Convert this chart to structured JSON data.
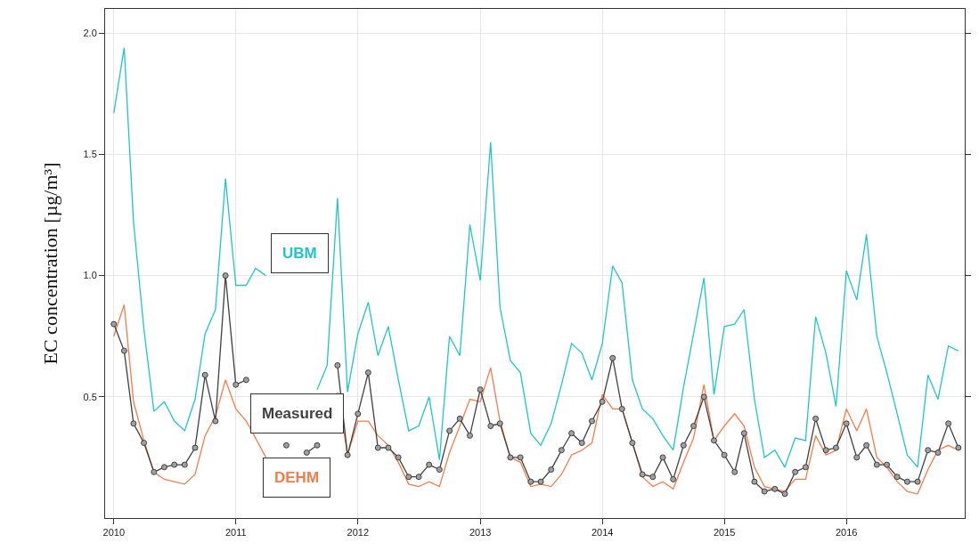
{
  "chart_data": {
    "type": "line",
    "ylabel": "EC concentration [µg/m³]",
    "x": [
      "2010-01",
      "2010-02",
      "2010-03",
      "2010-04",
      "2010-05",
      "2010-06",
      "2010-07",
      "2010-08",
      "2010-09",
      "2010-10",
      "2010-11",
      "2010-12",
      "2011-01",
      "2011-02",
      "2011-03",
      "2011-04",
      "2011-05",
      "2011-06",
      "2011-07",
      "2011-08",
      "2011-09",
      "2011-10",
      "2011-11",
      "2011-12",
      "2012-01",
      "2012-02",
      "2012-03",
      "2012-04",
      "2012-05",
      "2012-06",
      "2012-07",
      "2012-08",
      "2012-09",
      "2012-10",
      "2012-11",
      "2012-12",
      "2013-01",
      "2013-02",
      "2013-03",
      "2013-04",
      "2013-05",
      "2013-06",
      "2013-07",
      "2013-08",
      "2013-09",
      "2013-10",
      "2013-11",
      "2013-12",
      "2014-01",
      "2014-02",
      "2014-03",
      "2014-04",
      "2014-05",
      "2014-06",
      "2014-07",
      "2014-08",
      "2014-09",
      "2014-10",
      "2014-11",
      "2014-12",
      "2015-01",
      "2015-02",
      "2015-03",
      "2015-04",
      "2015-05",
      "2015-06",
      "2015-07",
      "2015-08",
      "2015-09",
      "2015-10",
      "2015-11",
      "2015-12",
      "2016-01",
      "2016-02",
      "2016-03",
      "2016-04",
      "2016-05",
      "2016-06",
      "2016-07",
      "2016-08",
      "2016-09",
      "2016-10",
      "2016-11",
      "2016-12"
    ],
    "series": [
      {
        "name": "UBM",
        "color": "#20c5c8",
        "marker": "none",
        "values": [
          1.67,
          1.94,
          1.22,
          0.78,
          0.44,
          0.48,
          0.4,
          0.36,
          0.49,
          0.76,
          0.86,
          1.4,
          0.96,
          0.96,
          1.03,
          1.0,
          null,
          null,
          null,
          null,
          0.53,
          0.63,
          1.32,
          0.52,
          0.76,
          0.89,
          0.67,
          0.79,
          0.57,
          0.36,
          0.38,
          0.5,
          0.24,
          0.75,
          0.67,
          1.21,
          0.98,
          1.55,
          0.87,
          0.65,
          0.6,
          0.35,
          0.3,
          0.39,
          0.55,
          0.72,
          0.68,
          0.57,
          0.72,
          1.04,
          0.97,
          0.57,
          0.45,
          0.41,
          0.34,
          0.28,
          0.54,
          0.76,
          0.99,
          0.51,
          0.79,
          0.8,
          0.86,
          0.49,
          0.25,
          0.28,
          0.21,
          0.33,
          0.32,
          0.83,
          0.68,
          0.46,
          1.02,
          0.9,
          1.17,
          0.75,
          0.6,
          0.43,
          0.26,
          0.21,
          0.59,
          0.49,
          0.71,
          0.69
        ]
      },
      {
        "name": "DEHM",
        "color": "#f47c48",
        "marker": "none",
        "values": [
          0.75,
          0.88,
          0.48,
          0.32,
          0.19,
          0.16,
          0.15,
          0.14,
          0.18,
          0.34,
          0.42,
          0.57,
          0.45,
          0.4,
          0.33,
          0.25,
          null,
          null,
          null,
          null,
          null,
          null,
          0.52,
          0.26,
          0.4,
          0.4,
          0.34,
          0.3,
          0.23,
          0.14,
          0.13,
          0.15,
          0.13,
          0.27,
          0.38,
          0.49,
          0.48,
          0.62,
          0.4,
          0.25,
          0.23,
          0.13,
          0.14,
          0.13,
          0.18,
          0.26,
          0.28,
          0.31,
          0.51,
          0.45,
          0.45,
          0.31,
          0.17,
          0.13,
          0.15,
          0.12,
          0.23,
          0.33,
          0.55,
          0.32,
          0.38,
          0.43,
          0.38,
          0.21,
          0.13,
          0.12,
          0.11,
          0.16,
          0.16,
          0.34,
          0.26,
          0.28,
          0.45,
          0.36,
          0.45,
          0.25,
          0.21,
          0.15,
          0.11,
          0.1,
          0.2,
          0.28,
          0.3,
          0.28
        ]
      },
      {
        "name": "Measured",
        "color": "#404040",
        "marker": "circle",
        "values": [
          0.8,
          0.69,
          0.39,
          0.31,
          0.19,
          0.21,
          0.22,
          0.22,
          0.29,
          0.59,
          0.4,
          1.0,
          0.55,
          0.57,
          null,
          null,
          null,
          0.3,
          null,
          0.27,
          0.3,
          null,
          0.63,
          0.26,
          0.43,
          0.6,
          0.29,
          0.29,
          0.25,
          0.17,
          0.17,
          0.22,
          0.2,
          0.36,
          0.41,
          0.34,
          0.53,
          0.38,
          0.39,
          0.25,
          0.25,
          0.15,
          0.15,
          0.2,
          0.28,
          0.35,
          0.31,
          0.4,
          0.48,
          0.66,
          0.45,
          0.31,
          0.18,
          0.17,
          0.25,
          0.16,
          0.3,
          0.38,
          0.5,
          0.32,
          0.26,
          0.19,
          0.35,
          0.15,
          0.11,
          0.12,
          0.1,
          0.19,
          0.21,
          0.41,
          0.28,
          0.29,
          0.39,
          0.25,
          0.3,
          0.22,
          0.22,
          0.17,
          0.15,
          0.15,
          0.28,
          0.27,
          0.39,
          0.29
        ]
      }
    ],
    "xlim": [
      "2009-12-06",
      "2016-12-20"
    ],
    "xticks": [
      {
        "value": "2010-01-01",
        "label": "2010"
      },
      {
        "value": "2011-01-01",
        "label": "2011"
      },
      {
        "value": "2012-01-01",
        "label": "2012"
      },
      {
        "value": "2013-01-01",
        "label": "2013"
      },
      {
        "value": "2014-01-01",
        "label": "2014"
      },
      {
        "value": "2015-01-01",
        "label": "2015"
      },
      {
        "value": "2016-01-01",
        "label": "2016"
      }
    ],
    "ylim": [
      0,
      2.1
    ],
    "yticks": [
      0.5,
      {
        "value": 1,
        "label": "1.0"
      },
      1.5,
      {
        "value": 2,
        "label": "2.0"
      }
    ],
    "grid": true,
    "legend": false,
    "line_style": "solid"
  }
}
